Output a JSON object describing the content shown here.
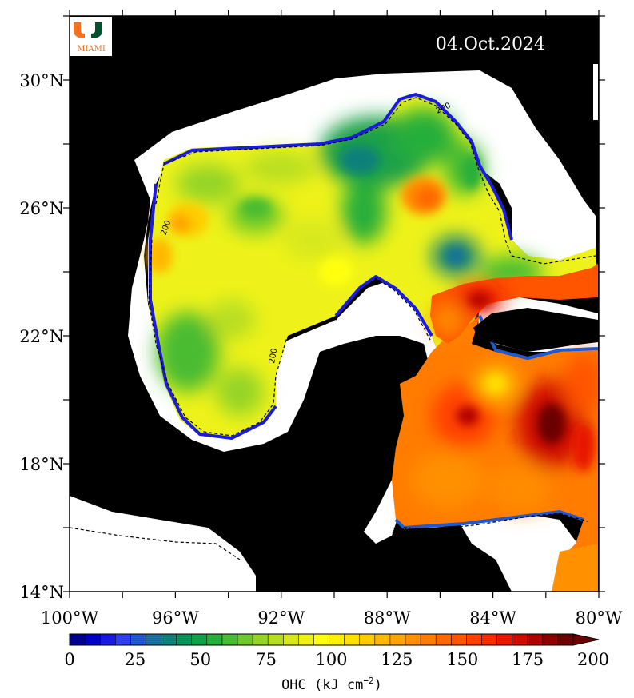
{
  "date": "04.Oct.2024",
  "logo": {
    "letter": "U",
    "text": "MIAMI",
    "colors": {
      "green": "#005030",
      "orange": "#f47321"
    }
  },
  "map": {
    "lon_range": [
      -100,
      -80
    ],
    "lat_range": [
      14,
      32
    ],
    "lat_ticks": [
      {
        "value": 30,
        "label": "30°N"
      },
      {
        "value": 26,
        "label": "26°N"
      },
      {
        "value": 22,
        "label": "22°N"
      },
      {
        "value": 18,
        "label": "18°N"
      },
      {
        "value": 14,
        "label": "14°N"
      }
    ],
    "lon_ticks": [
      {
        "value": -100,
        "label": "100°W"
      },
      {
        "value": -96,
        "label": "96°W"
      },
      {
        "value": -92,
        "label": "92°W"
      },
      {
        "value": -88,
        "label": "88°W"
      },
      {
        "value": -84,
        "label": "84°W"
      },
      {
        "value": -80,
        "label": "80°W"
      }
    ],
    "contour_label": "200",
    "colors": {
      "land": "#000000",
      "no_data": "#ffffff"
    }
  },
  "colorbar": {
    "min": 0,
    "max": 200,
    "step": 5,
    "tick_labels": [
      "0",
      "25",
      "50",
      "75",
      "100",
      "125",
      "150",
      "175",
      "200"
    ],
    "title_prefix": "OHC (kJ cm",
    "title_exp": "−2",
    "title_suffix": ")",
    "colors": [
      "#000090",
      "#0000c8",
      "#1a1ae0",
      "#3040f0",
      "#2058d0",
      "#1a6fa0",
      "#10807a",
      "#08935a",
      "#10a048",
      "#28ae3a",
      "#48bc32",
      "#6cc82c",
      "#94d426",
      "#b8de20",
      "#d6e81a",
      "#eef214",
      "#ffff10",
      "#fff000",
      "#ffe000",
      "#ffcc00",
      "#ffb800",
      "#ffa400",
      "#ff9000",
      "#ff7c00",
      "#ff6800",
      "#ff5400",
      "#ff4000",
      "#f82c00",
      "#e81800",
      "#d00c00",
      "#b00400",
      "#8c0000",
      "#6a0000"
    ]
  }
}
